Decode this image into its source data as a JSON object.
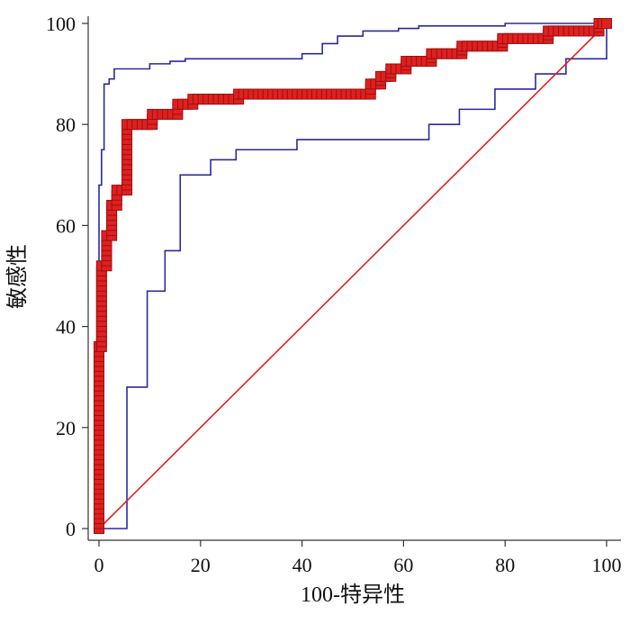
{
  "chart_data": {
    "type": "line",
    "title": "",
    "xlabel": "100-特异性",
    "ylabel": "敏感性",
    "xlim": [
      0,
      100
    ],
    "ylim": [
      0,
      100
    ],
    "x_ticks": [
      "0",
      "20",
      "40",
      "60",
      "80",
      "100"
    ],
    "y_ticks": [
      "0",
      "20",
      "40",
      "60",
      "80",
      "100"
    ],
    "grid": false,
    "colors": {
      "roc": "#e02020",
      "roc_marker_fill": "#e02020",
      "roc_marker_edge": "#9b1010",
      "ci": "#2a2a9c",
      "reference": "#e02020",
      "axis": "#333333"
    },
    "series": [
      {
        "role": "roc",
        "step": true,
        "markers": true,
        "x": [
          0,
          0,
          0.5,
          0.5,
          1.5,
          1.5,
          2.5,
          2.5,
          3.5,
          3.5,
          5.5,
          5.5,
          10.5,
          10.5,
          15.5,
          15.5,
          18.5,
          18.5,
          27.5,
          27.5,
          53.5,
          53.5,
          55.5,
          55.5,
          57.5,
          57.5,
          60.5,
          60.5,
          65.5,
          65.5,
          71.5,
          71.5,
          79.5,
          79.5,
          88.5,
          88.5,
          98.5,
          98.5,
          100
        ],
        "y": [
          0,
          36,
          36,
          52,
          52,
          58,
          58,
          64,
          64,
          67,
          67,
          80,
          80,
          82,
          82,
          84,
          84,
          85,
          85,
          86,
          86,
          88,
          88,
          89.5,
          89.5,
          91,
          91,
          92.5,
          92.5,
          94,
          94,
          95.5,
          95.5,
          97,
          97,
          98.5,
          98.5,
          100,
          100
        ]
      },
      {
        "role": "ci-upper",
        "step": true,
        "x": [
          0,
          0,
          0.5,
          0.5,
          1,
          1,
          2,
          2,
          3,
          3,
          10,
          10,
          14,
          14,
          17,
          17,
          40,
          40,
          44,
          44,
          47,
          47,
          52,
          52,
          59,
          59,
          63,
          63,
          80,
          80,
          100
        ],
        "y": [
          0,
          68,
          68,
          75,
          75,
          88,
          88,
          89,
          89,
          91,
          91,
          92,
          92,
          92.5,
          92.5,
          93,
          93,
          94,
          94,
          96,
          96,
          97.5,
          97.5,
          98.5,
          98.5,
          99,
          99,
          99.5,
          99.5,
          100,
          100
        ]
      },
      {
        "role": "ci-lower",
        "step": true,
        "x": [
          0,
          5.5,
          5.5,
          9.5,
          9.5,
          13,
          13,
          16,
          16,
          22,
          22,
          27,
          27,
          39,
          39,
          65,
          65,
          71,
          71,
          78,
          78,
          86,
          86,
          92,
          92,
          100,
          100
        ],
        "y": [
          0,
          0,
          28,
          28,
          47,
          47,
          55,
          55,
          70,
          70,
          73,
          73,
          75,
          75,
          77,
          77,
          80,
          80,
          83,
          83,
          87,
          87,
          90,
          90,
          93,
          93,
          100
        ]
      },
      {
        "role": "reference",
        "x": [
          0,
          100
        ],
        "y": [
          0,
          100
        ]
      }
    ]
  }
}
